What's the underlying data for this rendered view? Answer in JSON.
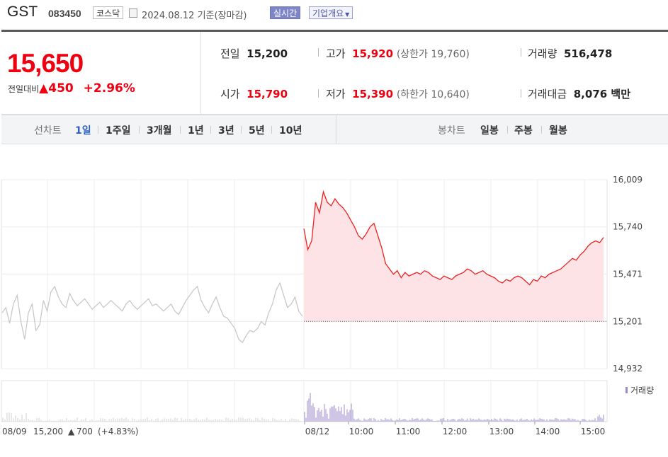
{
  "header": {
    "name": "GST",
    "code": "083450",
    "market": "코스닥",
    "date_text": "2024.08.12 기준(장마감)",
    "realtime_label": "실시간",
    "company_label": "기업개요"
  },
  "summary": {
    "price": "15,650",
    "diff_label": "전일대비",
    "diff_value": "450",
    "diff_rate": "+2.96%",
    "prev_label": "전일",
    "prev_value": "15,200",
    "open_label": "시가",
    "open_value": "15,790",
    "high_label": "고가",
    "high_value": "15,920",
    "upper_limit": "(상한가 19,760)",
    "low_label": "저가",
    "low_value": "15,390",
    "lower_limit": "(하한가 10,640)",
    "volume_label": "거래량",
    "volume_value": "516,478",
    "amount_label": "거래대금",
    "amount_value": "8,076 백만"
  },
  "tabs": {
    "line_label": "선차트",
    "line_periods": [
      "1일",
      "1주일",
      "3개월",
      "1년",
      "3년",
      "5년",
      "10년"
    ],
    "active": "1일",
    "candle_label": "봉차트",
    "candle_periods": [
      "일봉",
      "주봉",
      "월봉"
    ]
  },
  "chart_data": {
    "type": "line",
    "yticks": [
      "16,009",
      "15,740",
      "15,471",
      "15,201",
      "14,932"
    ],
    "ylim": [
      14932,
      16009
    ],
    "prev_close": 15201,
    "xlabels": [
      "08/12",
      "10:00",
      "11:00",
      "12:00",
      "13:00",
      "14:00",
      "15:00"
    ],
    "volume_legend": "거래량",
    "colors": {
      "today_line": "#ee2222",
      "today_fill": "#fde3e5",
      "prev_line": "#c8c8c8",
      "volume": "#9d8cc9"
    },
    "prev_day": {
      "date": "08/09",
      "close": "15,200",
      "change": "700",
      "rate": "(+4.83%)",
      "series": [
        15250,
        15280,
        15190,
        15300,
        15350,
        15200,
        15100,
        15250,
        15300,
        15150,
        15180,
        15320,
        15260,
        15370,
        15400,
        15340,
        15300,
        15280,
        15360,
        15320,
        15290,
        15310,
        15330,
        15300,
        15270,
        15290,
        15310,
        15280,
        15300,
        15320,
        15300,
        15280,
        15260,
        15300,
        15320,
        15290,
        15270,
        15290,
        15310,
        15330,
        15290,
        15300,
        15280,
        15260,
        15280,
        15300,
        15260,
        15240,
        15280,
        15320,
        15350,
        15380,
        15400,
        15320,
        15280,
        15250,
        15300,
        15340,
        15280,
        15230,
        15220,
        15190,
        15160,
        15100,
        15080,
        15120,
        15150,
        15140,
        15160,
        15200,
        15180,
        15250,
        15300,
        15380,
        15420,
        15350,
        15280,
        15300,
        15340,
        15260,
        15230
      ]
    },
    "today": {
      "series": [
        15730,
        15610,
        15660,
        15880,
        15820,
        15940,
        15880,
        15860,
        15900,
        15870,
        15850,
        15820,
        15780,
        15740,
        15690,
        15670,
        15700,
        15740,
        15760,
        15690,
        15620,
        15530,
        15500,
        15470,
        15490,
        15450,
        15480,
        15460,
        15470,
        15480,
        15470,
        15490,
        15480,
        15460,
        15450,
        15440,
        15460,
        15450,
        15440,
        15460,
        15470,
        15480,
        15500,
        15490,
        15470,
        15480,
        15490,
        15470,
        15460,
        15450,
        15430,
        15420,
        15440,
        15430,
        15450,
        15460,
        15450,
        15430,
        15410,
        15440,
        15430,
        15460,
        15450,
        15470,
        15480,
        15490,
        15500,
        15520,
        15540,
        15560,
        15550,
        15580,
        15600,
        15630,
        15650,
        15660,
        15650,
        15680
      ]
    }
  }
}
